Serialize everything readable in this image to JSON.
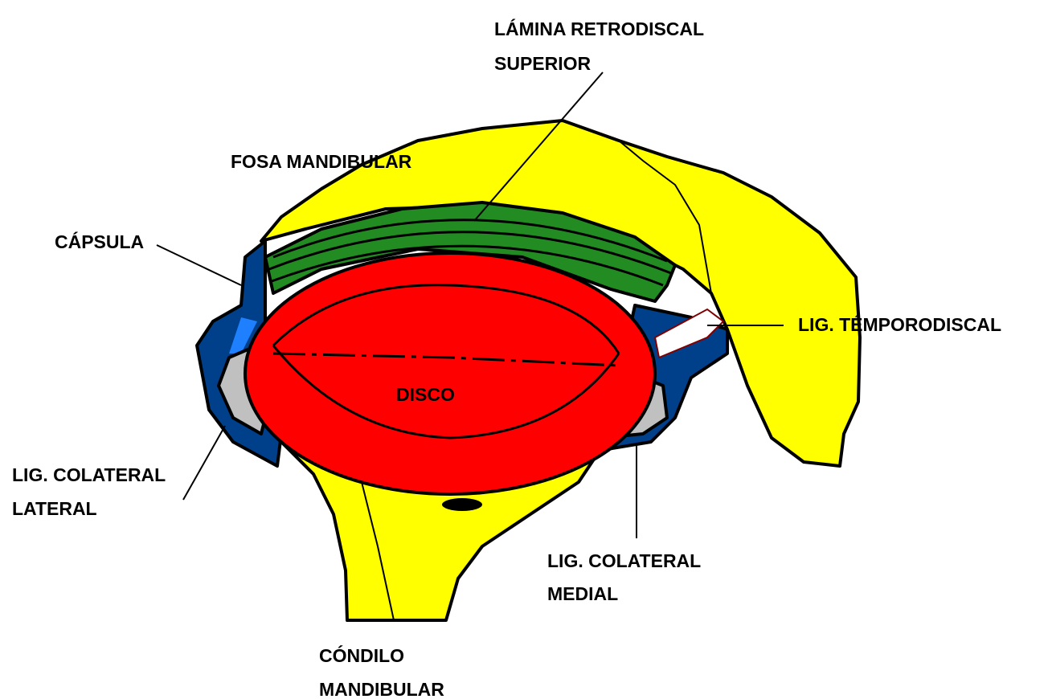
{
  "labels": [
    {
      "lines": [
        "LÁMINA RETRODISCAL",
        "SUPERIOR"
      ]
    },
    {
      "lines": [
        "FOSA MANDIBULAR"
      ]
    },
    {
      "lines": [
        "CÁPSULA"
      ]
    },
    {
      "lines": [
        "LIG. TÉMPORODISCAL"
      ]
    },
    {
      "lines": [
        "DISCO"
      ]
    },
    {
      "lines": [
        "LIG. COLATERAL",
        "LATERAL"
      ]
    },
    {
      "lines": [
        "LIG. COLATERAL",
        "MEDIAL"
      ]
    },
    {
      "lines": [
        "CÓNDILO",
        "MANDIBULAR"
      ]
    }
  ]
}
